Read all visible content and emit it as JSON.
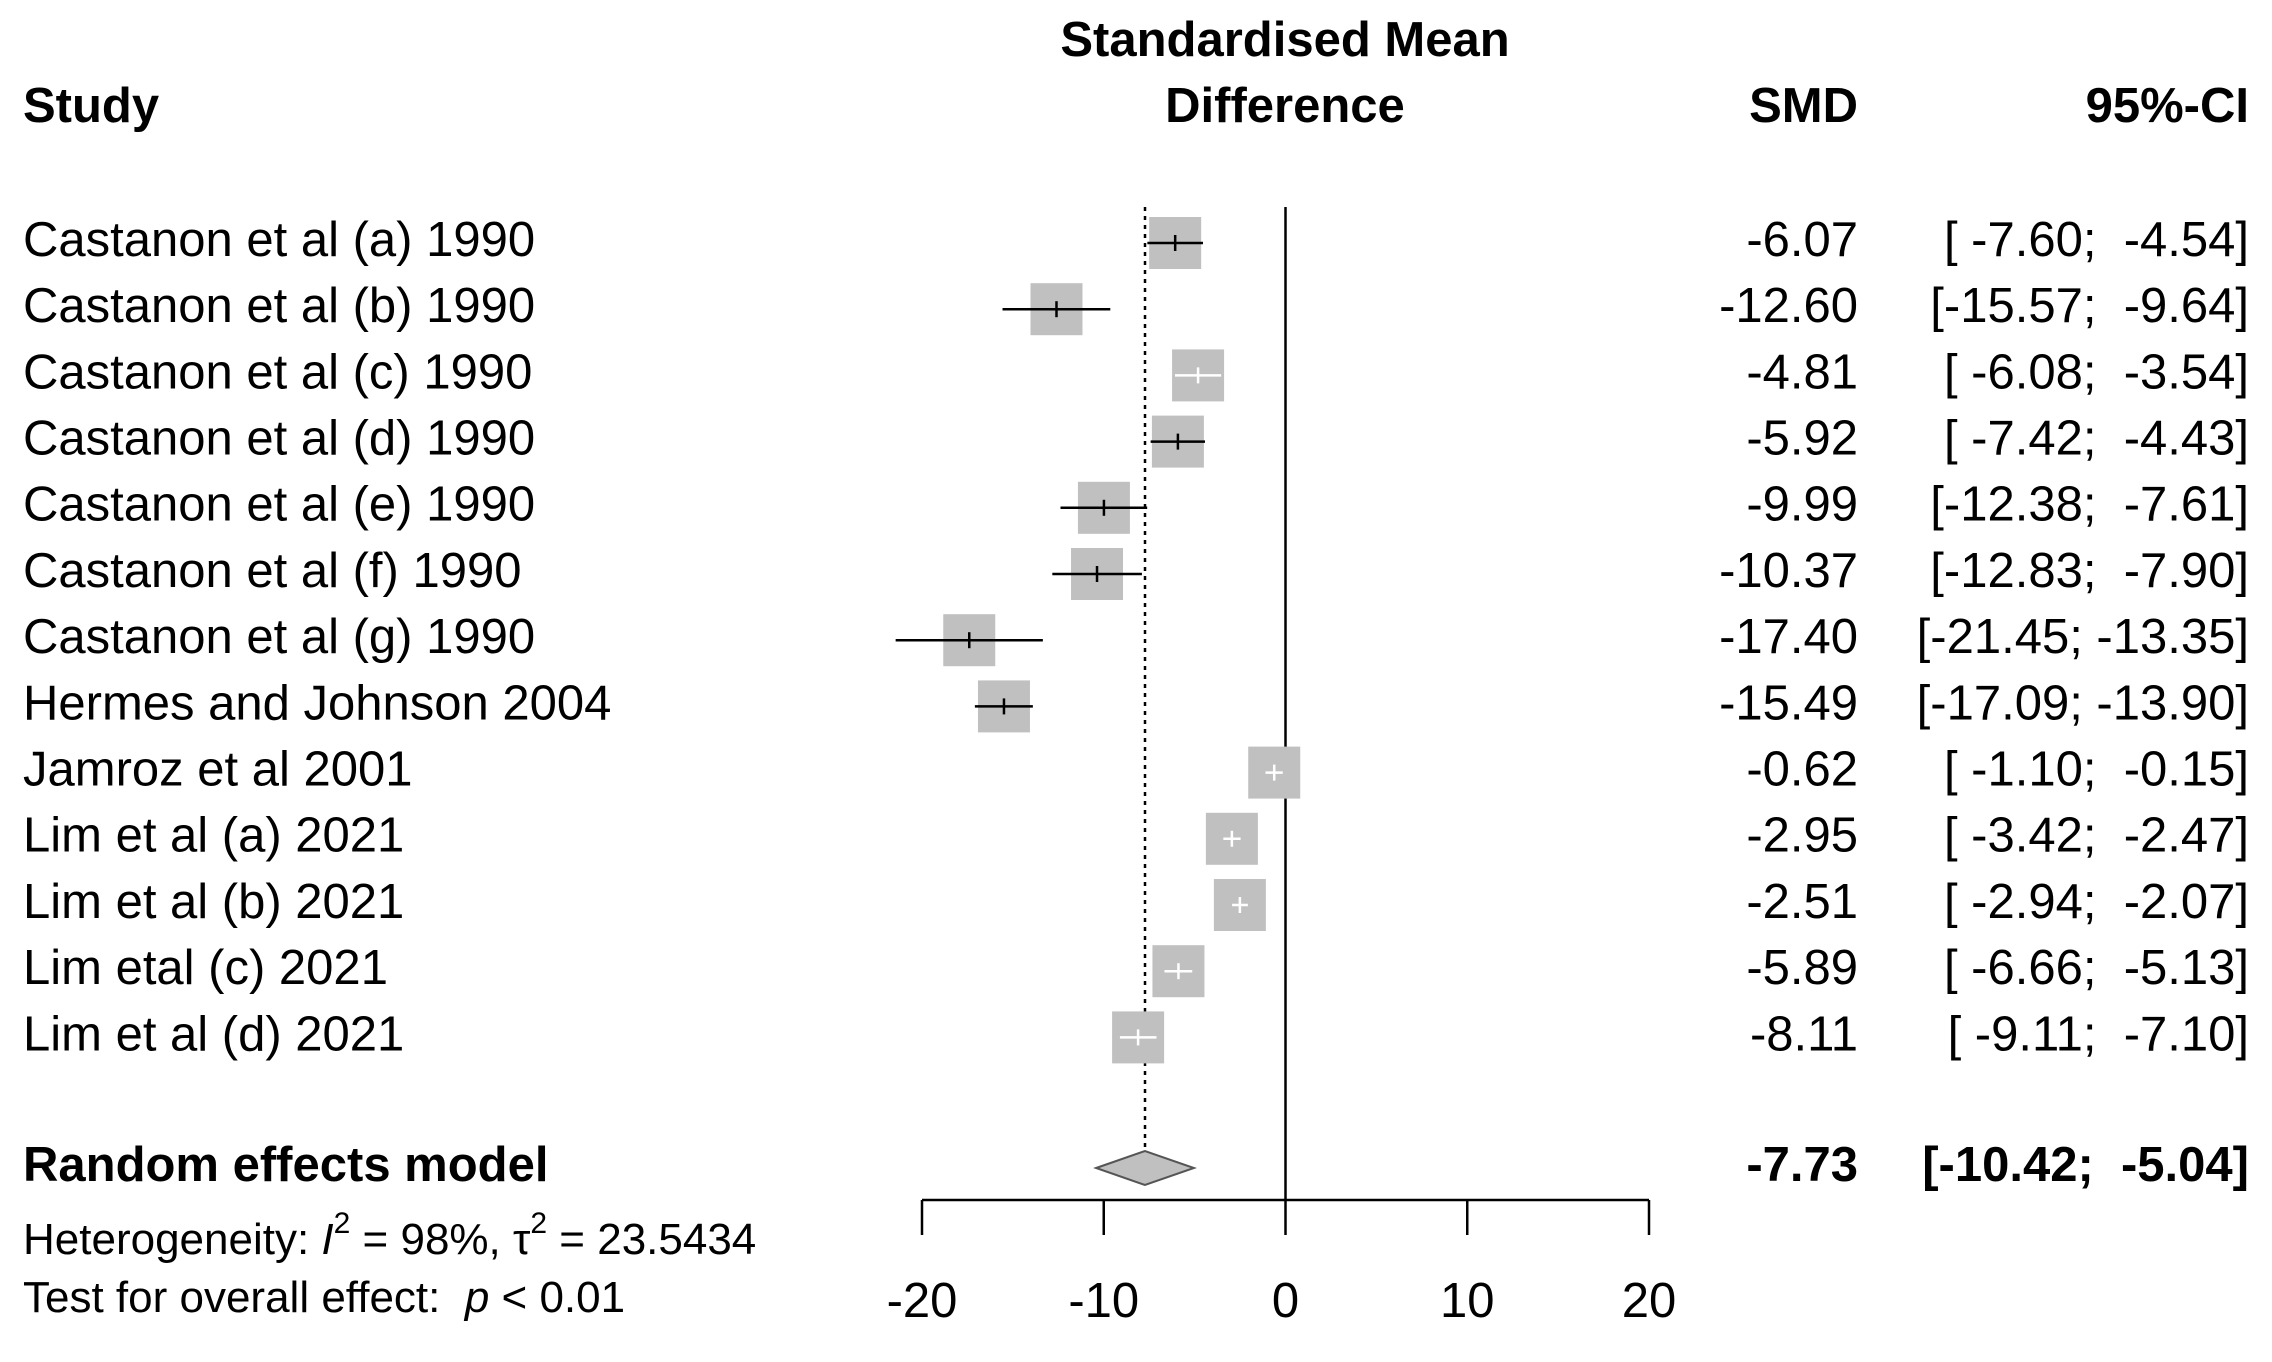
{
  "chart_data": {
    "type": "forest",
    "title": [
      "Standardised Mean",
      "Difference"
    ],
    "columns": {
      "study": "Study",
      "smd": "SMD",
      "ci": "95%-CI"
    },
    "categories": [
      "Castanon et al (a) 1990",
      "Castanon et al (b) 1990",
      "Castanon et al (c) 1990",
      "Castanon et al (d) 1990",
      "Castanon et al (e) 1990",
      "Castanon et al (f) 1990",
      "Castanon et al (g) 1990",
      "Hermes and Johnson 2004",
      "Jamroz et al 2001",
      "Lim et al (a) 2021",
      "Lim et al (b) 2021",
      "Lim etal (c) 2021",
      "Lim et al (d) 2021"
    ],
    "values": [
      -6.07,
      -12.6,
      -4.81,
      -5.92,
      -9.99,
      -10.37,
      -17.4,
      -15.49,
      -0.62,
      -2.95,
      -2.51,
      -5.89,
      -8.11
    ],
    "value_labels": [
      "-6.07",
      "-12.60",
      "-4.81",
      "-5.92",
      "-9.99",
      "-10.37",
      "-17.40",
      "-15.49",
      "-0.62",
      "-2.95",
      "-2.51",
      "-5.89",
      "-8.11"
    ],
    "lower": [
      -7.6,
      -15.57,
      -6.08,
      -7.42,
      -12.38,
      -12.83,
      -21.45,
      -17.09,
      -1.1,
      -3.42,
      -2.94,
      -6.66,
      -9.11
    ],
    "upper": [
      -4.54,
      -9.64,
      -3.54,
      -4.43,
      -7.61,
      -7.9,
      -13.35,
      -13.9,
      -0.15,
      -2.47,
      -2.07,
      -5.13,
      -7.1
    ],
    "ci_labels": [
      "[ -7.60;  -4.54]",
      "[-15.57;  -9.64]",
      "[ -6.08;  -3.54]",
      "[ -7.42;  -4.43]",
      "[-12.38;  -7.61]",
      "[-12.83;  -7.90]",
      "[-21.45; -13.35]",
      "[-17.09; -13.90]",
      "[ -1.10;  -0.15]",
      "[ -3.42;  -2.47]",
      "[ -2.94;  -2.07]",
      "[ -6.66;  -5.13]",
      "[ -9.11;  -7.10]"
    ],
    "summary": {
      "name": "Random effects model",
      "value": -7.73,
      "lower": -10.42,
      "upper": -5.04,
      "ci_label": "[-10.42;  -5.04]"
    },
    "heterogeneity": [
      "Heterogeneity: ",
      "I",
      "2",
      " = 98%, ",
      "τ",
      "2",
      " = 23.5434"
    ],
    "overall_test": [
      "Test for overall effect:  ",
      "p",
      " < 0.01"
    ],
    "xlim": [
      -20,
      20
    ],
    "xticks": [
      -20,
      -10,
      0,
      10,
      20
    ],
    "box_color": "#c0c0c0",
    "diamond_color": "#c0c0c0"
  }
}
